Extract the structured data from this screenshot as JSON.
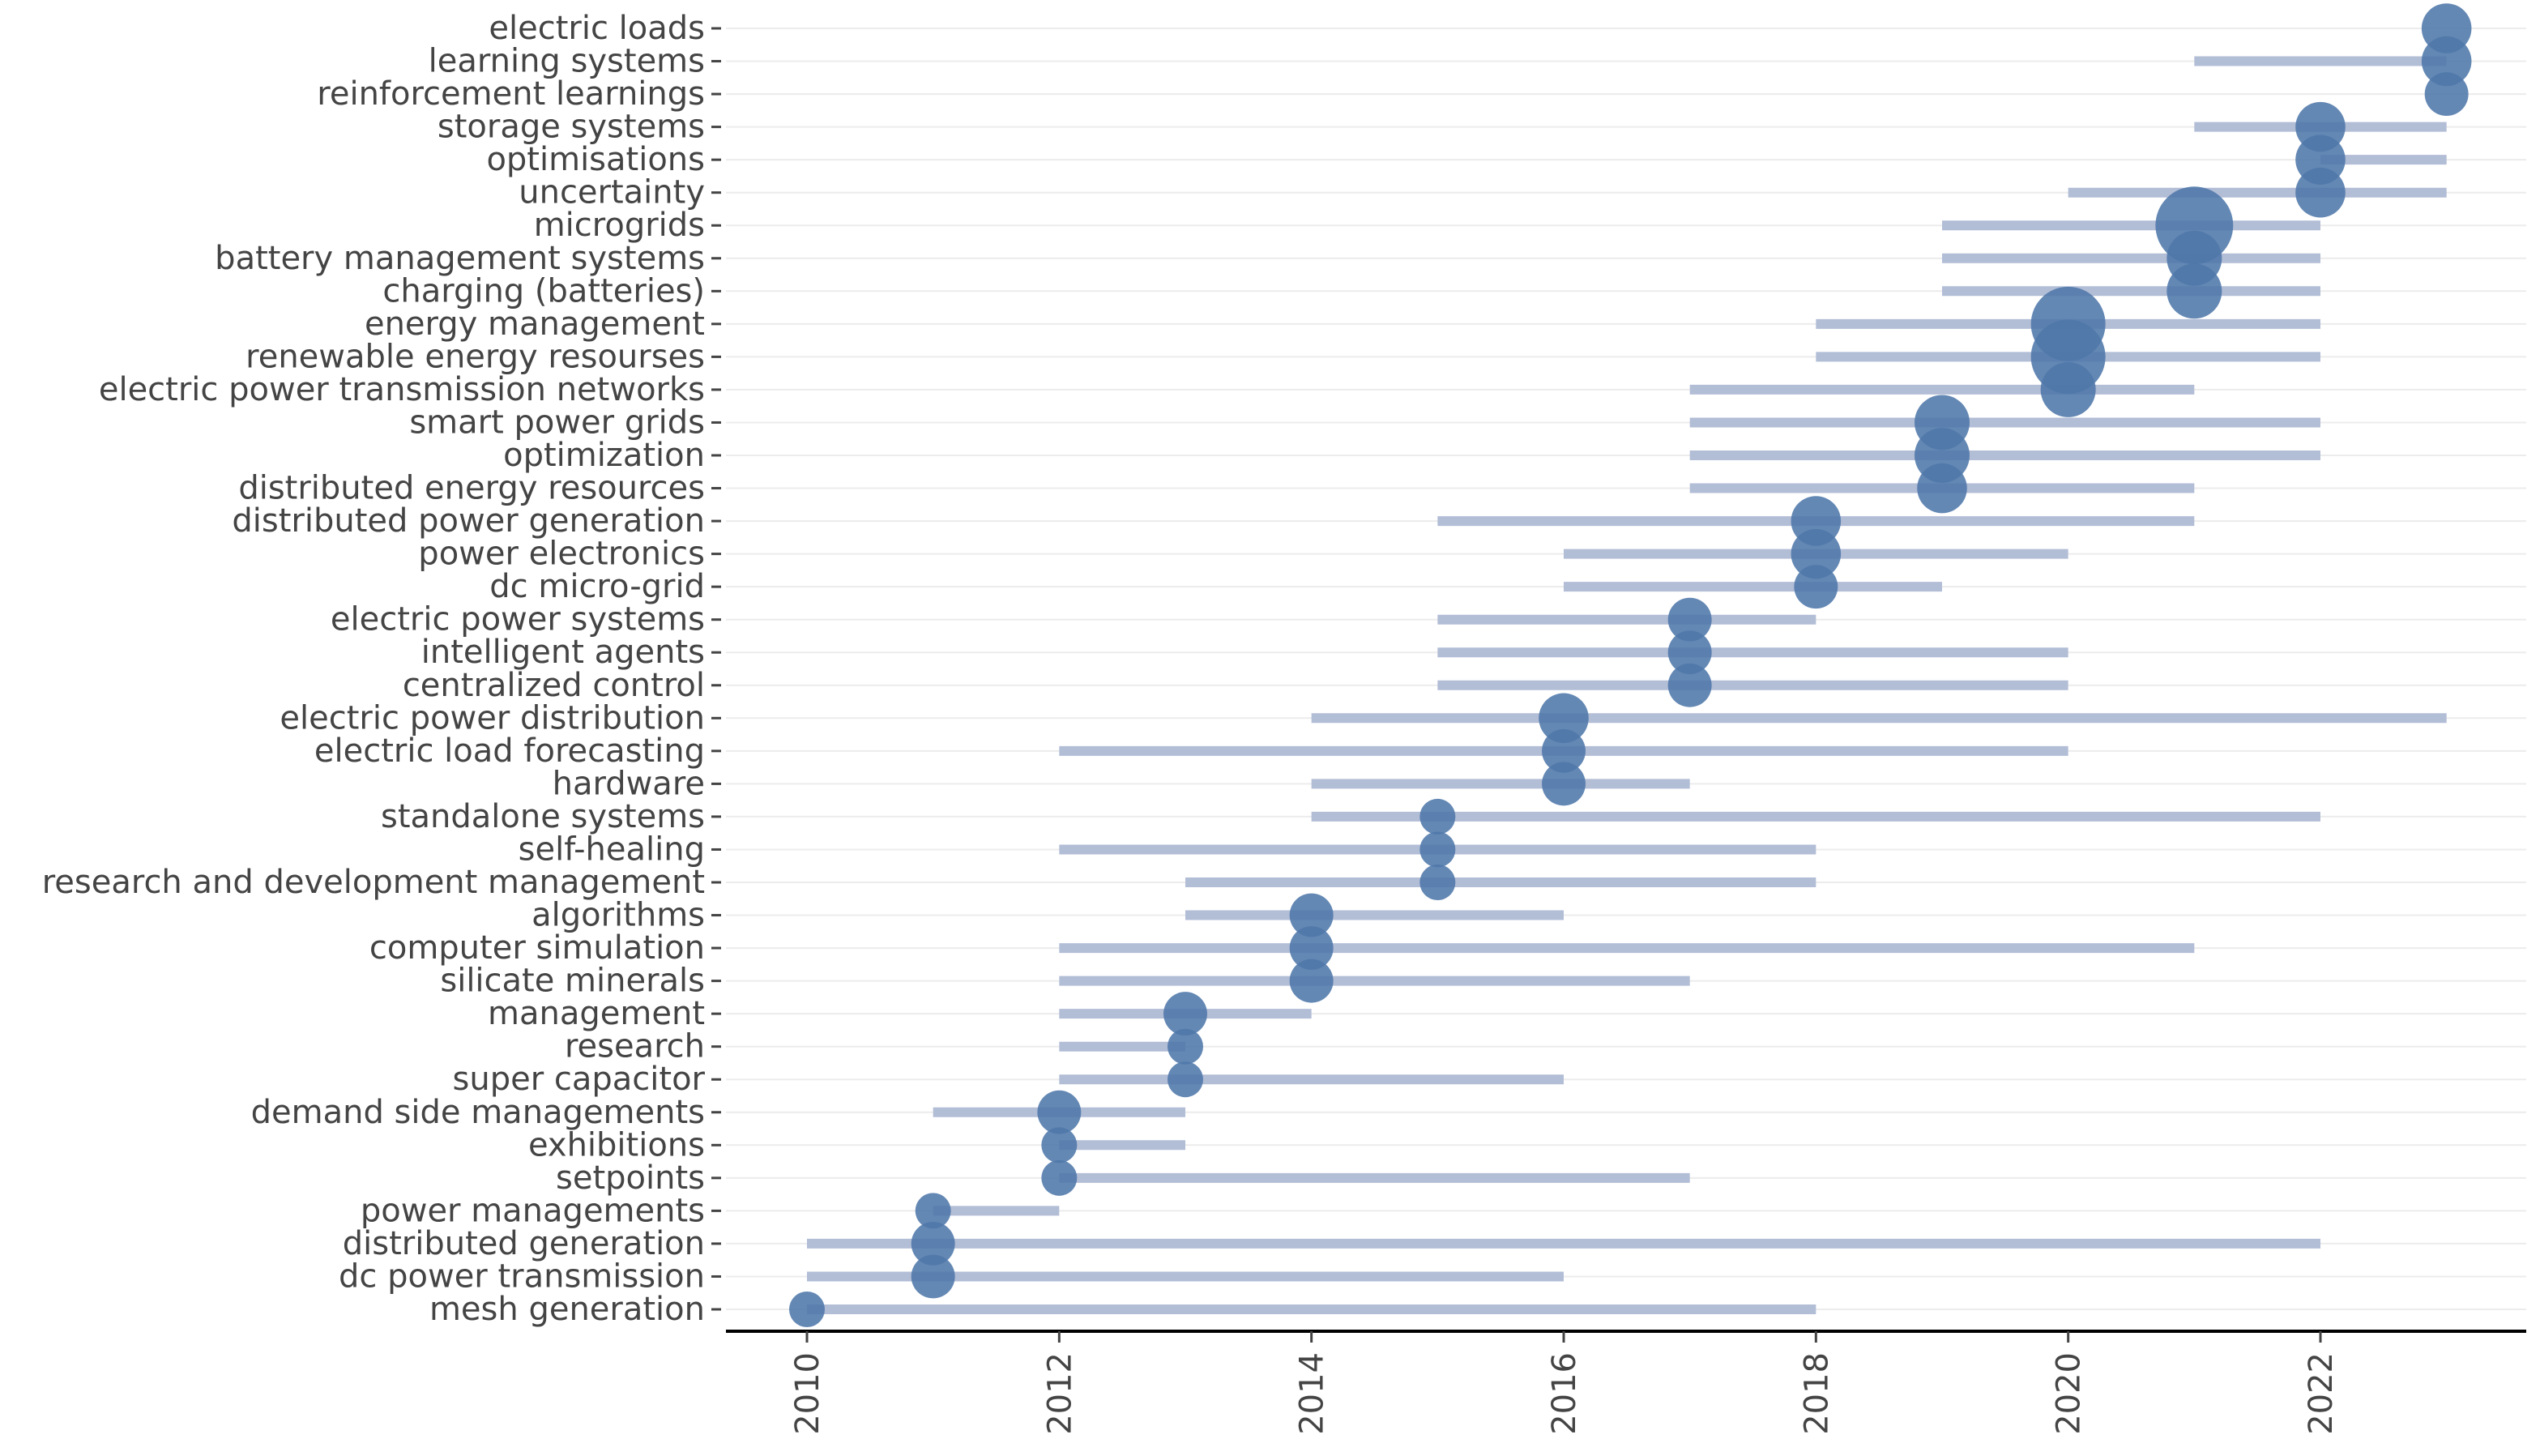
{
  "chart_data": {
    "type": "scatter",
    "title": "",
    "xlabel": "",
    "ylabel": "",
    "xlim": [
      2009.4,
      2023.6
    ],
    "xticks": [
      "2010",
      "2012",
      "2014",
      "2016",
      "2018",
      "2020",
      "2022"
    ],
    "colors": {
      "dot": "#4f77aa",
      "range": "#b2bdd6",
      "grid": "#ececec",
      "axis": "#000000"
    },
    "terms": [
      {
        "term": "electric loads",
        "start": 2023,
        "peak": 2023,
        "end": 2023,
        "freq": 3
      },
      {
        "term": "learning systems",
        "start": 2021,
        "peak": 2023,
        "end": 2023,
        "freq": 3
      },
      {
        "term": "reinforcement learnings",
        "start": 2023,
        "peak": 2023,
        "end": 2023,
        "freq": 2
      },
      {
        "term": "storage systems",
        "start": 2021,
        "peak": 2022,
        "end": 2023,
        "freq": 3
      },
      {
        "term": "optimisations",
        "start": 2022,
        "peak": 2022,
        "end": 2023,
        "freq": 3
      },
      {
        "term": "uncertainty",
        "start": 2020,
        "peak": 2022,
        "end": 2023,
        "freq": 3
      },
      {
        "term": "microgrids",
        "start": 2019,
        "peak": 2021,
        "end": 2022,
        "freq": 10
      },
      {
        "term": "battery management systems",
        "start": 2019,
        "peak": 2021,
        "end": 2022,
        "freq": 4
      },
      {
        "term": "charging (batteries)",
        "start": 2019,
        "peak": 2021,
        "end": 2022,
        "freq": 4
      },
      {
        "term": "energy management",
        "start": 2018,
        "peak": 2020,
        "end": 2022,
        "freq": 9
      },
      {
        "term": "renewable energy resourses",
        "start": 2018,
        "peak": 2020,
        "end": 2022,
        "freq": 9
      },
      {
        "term": "electric power transmission networks",
        "start": 2017,
        "peak": 2020,
        "end": 2021,
        "freq": 4
      },
      {
        "term": "smart power grids",
        "start": 2017,
        "peak": 2019,
        "end": 2022,
        "freq": 4
      },
      {
        "term": "optimization",
        "start": 2017,
        "peak": 2019,
        "end": 2022,
        "freq": 4
      },
      {
        "term": "distributed energy resources",
        "start": 2017,
        "peak": 2019,
        "end": 2021,
        "freq": 3
      },
      {
        "term": "distributed power generation",
        "start": 2015,
        "peak": 2018,
        "end": 2021,
        "freq": 3
      },
      {
        "term": "power electronics",
        "start": 2016,
        "peak": 2018,
        "end": 2020,
        "freq": 3
      },
      {
        "term": "dc micro-grid",
        "start": 2016,
        "peak": 2018,
        "end": 2019,
        "freq": 2
      },
      {
        "term": "electric power systems",
        "start": 2015,
        "peak": 2017,
        "end": 2018,
        "freq": 2
      },
      {
        "term": "intelligent agents",
        "start": 2015,
        "peak": 2017,
        "end": 2020,
        "freq": 2
      },
      {
        "term": "centralized control",
        "start": 2015,
        "peak": 2017,
        "end": 2020,
        "freq": 2
      },
      {
        "term": "electric power distribution",
        "start": 2014,
        "peak": 2016,
        "end": 2023,
        "freq": 3
      },
      {
        "term": "electric load forecasting",
        "start": 2012,
        "peak": 2016,
        "end": 2020,
        "freq": 2
      },
      {
        "term": "hardware",
        "start": 2014,
        "peak": 2016,
        "end": 2017,
        "freq": 2
      },
      {
        "term": "standalone systems",
        "start": 2014,
        "peak": 2015,
        "end": 2022,
        "freq": 1
      },
      {
        "term": "self-healing",
        "start": 2012,
        "peak": 2015,
        "end": 2018,
        "freq": 1
      },
      {
        "term": "research and development management",
        "start": 2013,
        "peak": 2015,
        "end": 2018,
        "freq": 1
      },
      {
        "term": "algorithms",
        "start": 2013,
        "peak": 2014,
        "end": 2016,
        "freq": 2
      },
      {
        "term": "computer simulation",
        "start": 2012,
        "peak": 2014,
        "end": 2021,
        "freq": 2
      },
      {
        "term": "silicate minerals",
        "start": 2012,
        "peak": 2014,
        "end": 2017,
        "freq": 2
      },
      {
        "term": "management",
        "start": 2012,
        "peak": 2013,
        "end": 2014,
        "freq": 2
      },
      {
        "term": "research",
        "start": 2012,
        "peak": 2013,
        "end": 2013,
        "freq": 1
      },
      {
        "term": "super capacitor",
        "start": 2012,
        "peak": 2013,
        "end": 2016,
        "freq": 1
      },
      {
        "term": "demand side managements",
        "start": 2011,
        "peak": 2012,
        "end": 2013,
        "freq": 2
      },
      {
        "term": "exhibitions",
        "start": 2012,
        "peak": 2012,
        "end": 2013,
        "freq": 1
      },
      {
        "term": "setpoints",
        "start": 2012,
        "peak": 2012,
        "end": 2017,
        "freq": 1
      },
      {
        "term": "power managements",
        "start": 2011,
        "peak": 2011,
        "end": 2012,
        "freq": 1
      },
      {
        "term": "distributed generation",
        "start": 2010,
        "peak": 2011,
        "end": 2022,
        "freq": 2
      },
      {
        "term": "dc power transmission",
        "start": 2010,
        "peak": 2011,
        "end": 2016,
        "freq": 2
      },
      {
        "term": "mesh generation",
        "start": 2010,
        "peak": 2010,
        "end": 2018,
        "freq": 1
      }
    ]
  }
}
